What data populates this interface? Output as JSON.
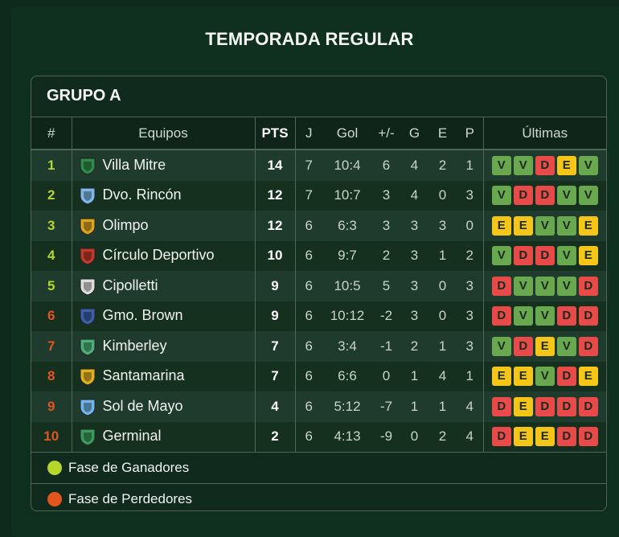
{
  "title": "TEMPORADA REGULAR",
  "group": "GRUPO A",
  "columns": {
    "rank": "#",
    "team": "Equipos",
    "pts": "PTS",
    "j": "J",
    "gol": "Gol",
    "diff": "+/-",
    "g": "G",
    "e": "E",
    "p": "P",
    "last": "Últimas"
  },
  "colors": {
    "winners": "#b5d62a",
    "losers": "#e0561c",
    "V": "#6aa84f",
    "D": "#e84a4a",
    "E": "#f5c518"
  },
  "rows": [
    {
      "rank": "1",
      "team": "Villa Mitre",
      "pts": "14",
      "j": "7",
      "gol": "10:4",
      "diff": "6",
      "g": "4",
      "e": "2",
      "p": "1",
      "last": [
        "V",
        "V",
        "D",
        "E",
        "V"
      ],
      "phase": "winners",
      "crest": "#2e8b4a"
    },
    {
      "rank": "2",
      "team": "Dvo. Rincón",
      "pts": "12",
      "j": "7",
      "gol": "10:7",
      "diff": "3",
      "g": "4",
      "e": "0",
      "p": "3",
      "last": [
        "V",
        "D",
        "D",
        "V",
        "V"
      ],
      "phase": "winners",
      "crest": "#7fb7e6"
    },
    {
      "rank": "3",
      "team": "Olimpo",
      "pts": "12",
      "j": "6",
      "gol": "6:3",
      "diff": "3",
      "g": "3",
      "e": "3",
      "p": "0",
      "last": [
        "E",
        "E",
        "V",
        "V",
        "E"
      ],
      "phase": "winners",
      "crest": "#d9a520"
    },
    {
      "rank": "4",
      "team": "Círculo Deportivo",
      "pts": "10",
      "j": "6",
      "gol": "9:7",
      "diff": "2",
      "g": "3",
      "e": "1",
      "p": "2",
      "last": [
        "V",
        "D",
        "D",
        "V",
        "E"
      ],
      "phase": "winners",
      "crest": "#c0392b"
    },
    {
      "rank": "5",
      "team": "Cipolletti",
      "pts": "9",
      "j": "6",
      "gol": "10:5",
      "diff": "5",
      "g": "3",
      "e": "0",
      "p": "3",
      "last": [
        "D",
        "V",
        "V",
        "V",
        "D"
      ],
      "phase": "winners",
      "crest": "#dddddd"
    },
    {
      "rank": "6",
      "team": "Gmo. Brown",
      "pts": "9",
      "j": "6",
      "gol": "10:12",
      "diff": "-2",
      "g": "3",
      "e": "0",
      "p": "3",
      "last": [
        "D",
        "V",
        "V",
        "D",
        "D"
      ],
      "phase": "losers",
      "crest": "#3b5fa8"
    },
    {
      "rank": "7",
      "team": "Kimberley",
      "pts": "7",
      "j": "6",
      "gol": "3:4",
      "diff": "-1",
      "g": "2",
      "e": "1",
      "p": "3",
      "last": [
        "V",
        "D",
        "E",
        "V",
        "D"
      ],
      "phase": "losers",
      "crest": "#4caf7a"
    },
    {
      "rank": "8",
      "team": "Santamarina",
      "pts": "7",
      "j": "6",
      "gol": "6:6",
      "diff": "0",
      "g": "1",
      "e": "4",
      "p": "1",
      "last": [
        "E",
        "E",
        "V",
        "D",
        "E"
      ],
      "phase": "losers",
      "crest": "#e0b020"
    },
    {
      "rank": "9",
      "team": "Sol de Mayo",
      "pts": "4",
      "j": "6",
      "gol": "5:12",
      "diff": "-7",
      "g": "1",
      "e": "1",
      "p": "4",
      "last": [
        "D",
        "E",
        "D",
        "D",
        "D"
      ],
      "phase": "losers",
      "crest": "#6fb5e8"
    },
    {
      "rank": "10",
      "team": "Germinal",
      "pts": "2",
      "j": "6",
      "gol": "4:13",
      "diff": "-9",
      "g": "0",
      "e": "2",
      "p": "4",
      "last": [
        "D",
        "E",
        "E",
        "D",
        "D"
      ],
      "phase": "losers",
      "crest": "#3a9a5a"
    }
  ],
  "legend": [
    {
      "label": "Fase de Ganadores",
      "color": "#b5d62a"
    },
    {
      "label": "Fase de Perdedores",
      "color": "#e0561c"
    }
  ]
}
